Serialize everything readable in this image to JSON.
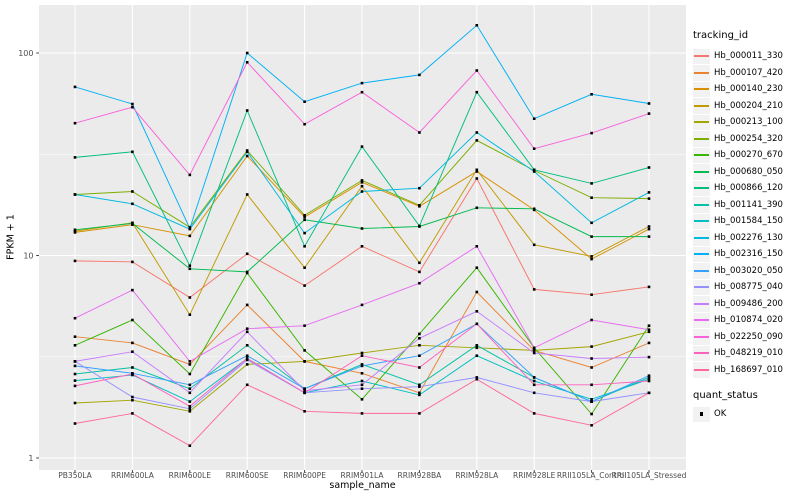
{
  "figure": {
    "background": "#FFFFFF",
    "panel_background": "#EBEBEB",
    "gridline_color": "#FFFFFF",
    "tick_color": "#333333",
    "tick_label_color": "#4D4D4D",
    "marker_color": "#000000"
  },
  "chart_data": {
    "type": "line",
    "title": "",
    "xlabel": "sample_name",
    "ylabel": "FPKM + 1",
    "y_scale": "log10",
    "ylim": [
      1,
      150
    ],
    "y_ticks": [
      1,
      10,
      100
    ],
    "y_minor_gridlines": [
      3.162,
      31.623
    ],
    "grid": "on",
    "legend_position": "right",
    "legend_title": "tracking_id",
    "point_shape": "black-square",
    "categories": [
      "PB350LA",
      "RRIM600LA",
      "RRIM600LE",
      "RRIM600SE",
      "RRIM600PE",
      "RRIM901LA",
      "RRIM928BA",
      "RRIM928LA",
      "RRIM928LE",
      "RRII105LA_Control",
      "RRII105LA_Stressed"
    ],
    "series": [
      {
        "name": "Hb_000011_330",
        "color": "#F8766D",
        "values": [
          9.4,
          9.3,
          6.2,
          10.2,
          7.1,
          11.1,
          8.3,
          24.0,
          6.8,
          6.4,
          7.0
        ]
      },
      {
        "name": "Hb_000107_420",
        "color": "#EA8331",
        "values": [
          3.97,
          3.7,
          2.9,
          5.7,
          3.0,
          2.62,
          2.1,
          6.6,
          3.4,
          2.8,
          3.7
        ]
      },
      {
        "name": "Hb_000140_230",
        "color": "#D89000",
        "values": [
          13.0,
          14.2,
          12.5,
          31.0,
          15.5,
          23.0,
          17.5,
          26.0,
          16.8,
          9.6,
          13.5
        ]
      },
      {
        "name": "Hb_000204_210",
        "color": "#C09B00",
        "values": [
          13.2,
          14.5,
          5.1,
          20.0,
          8.7,
          22.0,
          9.2,
          26.5,
          11.3,
          9.9,
          13.9
        ]
      },
      {
        "name": "Hb_000213_100",
        "color": "#A3A500",
        "values": [
          1.87,
          1.93,
          1.7,
          2.9,
          3.0,
          3.3,
          3.6,
          3.5,
          3.4,
          3.55,
          4.2
        ]
      },
      {
        "name": "Hb_000254_320",
        "color": "#7CAE00",
        "values": [
          20.0,
          20.7,
          13.8,
          33.0,
          15.8,
          23.5,
          17.7,
          37.0,
          26.3,
          19.3,
          19.1
        ]
      },
      {
        "name": "Hb_000270_670",
        "color": "#39B600",
        "values": [
          3.6,
          4.8,
          2.6,
          8.2,
          3.4,
          1.95,
          4.1,
          8.7,
          3.5,
          1.65,
          4.5
        ]
      },
      {
        "name": "Hb_000680_050",
        "color": "#00BB4E",
        "values": [
          13.4,
          14.4,
          8.6,
          8.3,
          15.0,
          13.6,
          13.9,
          17.2,
          17.0,
          12.4,
          12.4
        ]
      },
      {
        "name": "Hb_000866_120",
        "color": "#00BF7D",
        "values": [
          30.5,
          32.5,
          8.9,
          52.0,
          11.1,
          34.5,
          14.0,
          64.0,
          26.5,
          22.7,
          27.2
        ]
      },
      {
        "name": "Hb_001141_390",
        "color": "#00C1A3",
        "values": [
          2.6,
          2.8,
          2.2,
          3.6,
          2.2,
          2.9,
          2.3,
          3.6,
          2.5,
          1.9,
          2.5
        ]
      },
      {
        "name": "Hb_001584_150",
        "color": "#00BFC4",
        "values": [
          2.41,
          2.57,
          1.9,
          3.1,
          2.1,
          2.4,
          2.05,
          3.2,
          2.4,
          1.95,
          2.45
        ]
      },
      {
        "name": "Hb_002276_130",
        "color": "#00BAE0",
        "values": [
          20.0,
          18.0,
          13.5,
          32.5,
          12.9,
          20.7,
          21.5,
          40.5,
          26.0,
          14.5,
          20.5
        ]
      },
      {
        "name": "Hb_002316_150",
        "color": "#00B0F6",
        "values": [
          68.0,
          56.0,
          13.6,
          100.0,
          57.5,
          71.0,
          78.0,
          137.0,
          47.4,
          62.5,
          56.3
        ]
      },
      {
        "name": "Hb_003020_050",
        "color": "#35A2FF",
        "values": [
          2.85,
          2.62,
          2.3,
          3.2,
          2.2,
          2.85,
          3.2,
          4.6,
          2.5,
          1.9,
          2.55
        ]
      },
      {
        "name": "Hb_008775_040",
        "color": "#9590FF",
        "values": [
          3.0,
          2.0,
          1.75,
          3.05,
          2.1,
          2.2,
          2.25,
          2.5,
          2.1,
          1.9,
          2.1
        ]
      },
      {
        "name": "Hb_009486_200",
        "color": "#C77CFF",
        "values": [
          3.0,
          3.35,
          2.1,
          4.2,
          2.15,
          2.3,
          3.9,
          5.3,
          3.3,
          3.1,
          3.15
        ]
      },
      {
        "name": "Hb_010874_020",
        "color": "#E76BF3",
        "values": [
          4.9,
          6.75,
          3.0,
          4.35,
          4.5,
          5.7,
          7.3,
          11.1,
          3.5,
          4.8,
          4.3
        ]
      },
      {
        "name": "Hb_022250_090",
        "color": "#FA62DB",
        "values": [
          45.0,
          54.0,
          25.0,
          90.0,
          44.5,
          64.0,
          40.5,
          82.0,
          33.7,
          40.2,
          50.2
        ]
      },
      {
        "name": "Hb_048219_010",
        "color": "#FF62BC",
        "values": [
          2.27,
          2.6,
          1.8,
          3.1,
          2.1,
          3.2,
          2.8,
          4.6,
          2.3,
          2.3,
          2.4
        ]
      },
      {
        "name": "Hb_168697_010",
        "color": "#FF6A98",
        "values": [
          1.48,
          1.66,
          1.15,
          2.3,
          1.7,
          1.66,
          1.66,
          2.45,
          1.66,
          1.45,
          2.1
        ]
      }
    ],
    "quant_status": {
      "title": "quant_status",
      "items": [
        {
          "label": "OK",
          "marker": "black-square"
        }
      ]
    }
  }
}
